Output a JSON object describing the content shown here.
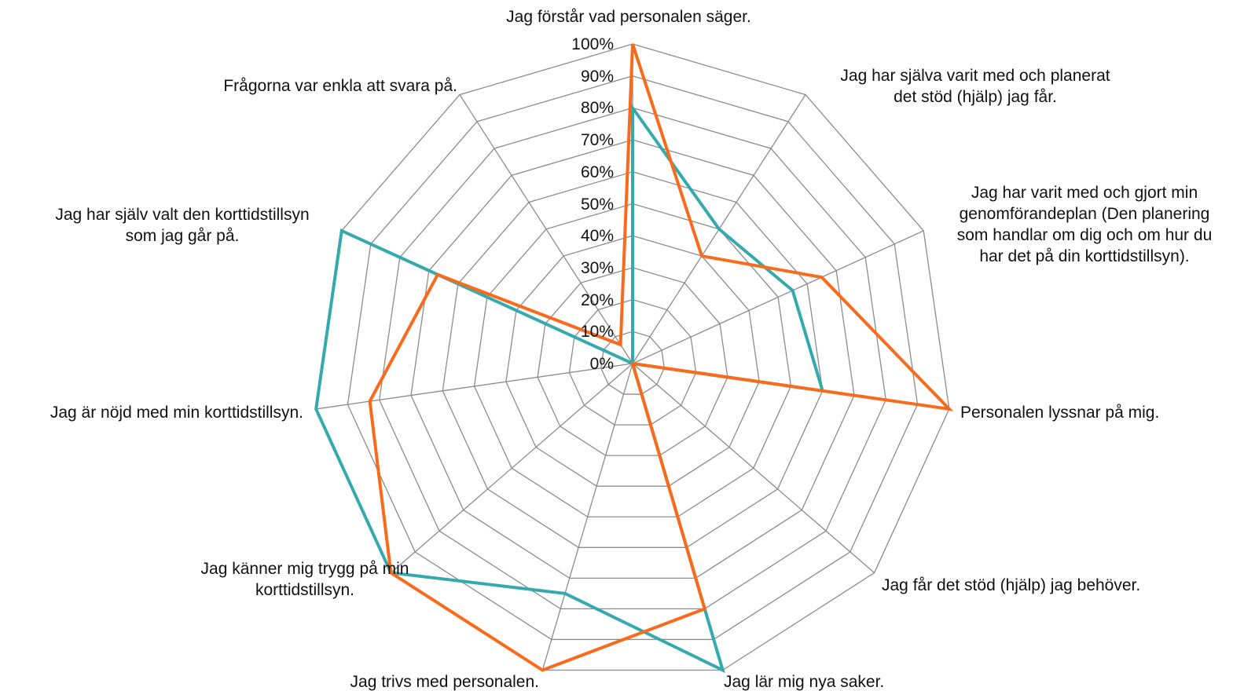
{
  "chart_data": {
    "type": "radar",
    "title": "",
    "categories": [
      "Jag förstår vad personalen säger.",
      "Jag har själva varit med och planerat det stöd (hjälp) jag får.",
      "Jag har varit med och gjort min genomförandeplan (Den planering som handlar om dig och om hur du har det på din korttidstillsyn).",
      "Personalen lyssnar på mig.",
      "Jag får det stöd (hjälp) jag behöver.",
      "Jag lär mig nya saker.",
      "Jag trivs med personalen.",
      "Jag känner mig trygg på min korttidstillsyn.",
      "Jag är nöjd med min korttidstillsyn.",
      "Jag har själv valt den korttidstillsyn som jag går på.",
      "Frågorna var enkla att svara på."
    ],
    "category_lines": [
      [
        "Jag förstår vad personalen säger."
      ],
      [
        "Jag har själva varit med och planerat",
        "det stöd (hjälp) jag får."
      ],
      [
        "Jag har varit med och gjort min",
        "genomförandeplan (Den planering",
        "som handlar om dig och om hur du",
        "har det på din korttidstillsyn)."
      ],
      [
        "Personalen lyssnar på mig."
      ],
      [
        "Jag får det stöd (hjälp) jag behöver."
      ],
      [
        "Jag lär mig nya saker."
      ],
      [
        "Jag trivs med personalen."
      ],
      [
        "Jag känner mig trygg på min",
        "korttidstillsyn."
      ],
      [
        "Jag är nöjd med min korttidstillsyn."
      ],
      [
        "Jag har själv valt den korttidstillsyn",
        "som jag går på."
      ],
      [
        "Frågorna var enkla att svara på."
      ]
    ],
    "tick_labels": [
      "0%",
      "10%",
      "20%",
      "30%",
      "40%",
      "50%",
      "60%",
      "70%",
      "80%",
      "90%",
      "100%"
    ],
    "rmin": 0,
    "rmax": 100,
    "grid": true,
    "legend": "none",
    "series": [
      {
        "color": "#35AAAE",
        "values": [
          80,
          50,
          55,
          60,
          0,
          100,
          75,
          100,
          100,
          100,
          0
        ]
      },
      {
        "color": "#F96A1B",
        "values": [
          100,
          40,
          65,
          100,
          0,
          80,
          100,
          100,
          83,
          67,
          7
        ]
      }
    ]
  }
}
